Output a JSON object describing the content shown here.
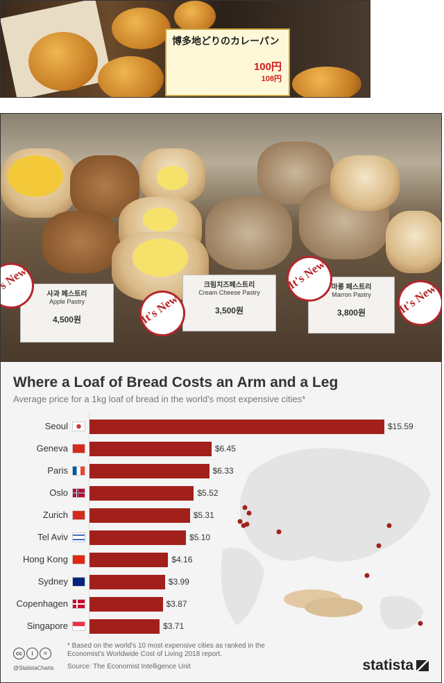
{
  "photo_top": {
    "label_title": "博多地どりのカレーパン",
    "price": "100円",
    "price_tax": "108円"
  },
  "photo_pastries": {
    "badge": "It's New",
    "tags": [
      {
        "korean": "사과 페스트리",
        "english": "Apple Pastry",
        "price": "4,500원"
      },
      {
        "korean": "크림치즈페스트리",
        "english": "Cream Cheese Pastry",
        "price": "3,500원"
      },
      {
        "korean": "마롱 페스트리",
        "english": "Marron Pastry",
        "price": "3,800원"
      }
    ]
  },
  "chart_data": {
    "type": "bar",
    "orientation": "horizontal",
    "title": "Where a Loaf of Bread Costs an Arm and a Leg",
    "subtitle": "Average price for a 1kg loaf of bread in the world's most expensive cities*",
    "categories": [
      "Seoul",
      "Geneva",
      "Paris",
      "Oslo",
      "Zurich",
      "Tel Aviv",
      "Hong Kong",
      "Sydney",
      "Copenhagen",
      "Singapore"
    ],
    "values": [
      15.59,
      6.45,
      6.33,
      5.52,
      5.31,
      5.1,
      4.16,
      3.99,
      3.87,
      3.71
    ],
    "labels": [
      "$15.59",
      "$6.45",
      "$6.33",
      "$5.52",
      "$5.31",
      "$5.10",
      "$4.16",
      "$3.99",
      "$3.87",
      "$3.71"
    ],
    "bar_color": "#a2201c",
    "xlim": [
      0,
      15.59
    ],
    "grid": false,
    "note": "* Based on the world's 10 most expensive cities as ranked in the Economist's Worldwide Cost of Living 2018 report.",
    "source": "Source: The Economist Intelligence Unit",
    "handle": "@StatistaCharts",
    "brand": "statista"
  }
}
